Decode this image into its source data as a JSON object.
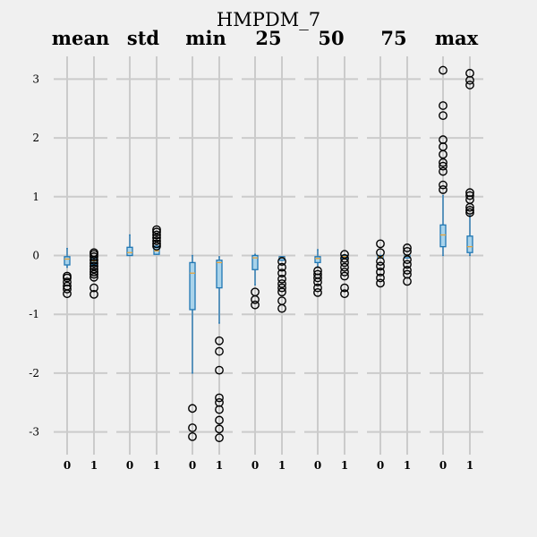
{
  "chart_data": {
    "type": "box",
    "title": "HMPDM_7",
    "yticks": [
      3,
      2,
      1,
      0,
      -1,
      -2,
      -3
    ],
    "ytick_labels": [
      "3",
      "2",
      "1",
      "0",
      "-1",
      "-2",
      "-3"
    ],
    "ylim": [
      -3.35,
      3.35
    ],
    "grid": true,
    "colors": {
      "background": "#f0f0f0",
      "grid": "#cbcbcb",
      "box_fill": "#a9d3ea",
      "box_edge": "#1f77b4",
      "median": "#e8a33a",
      "flier": "#000000"
    },
    "panels": [
      {
        "name": "mean",
        "groups": [
          {
            "label": "0",
            "q1": -0.16,
            "median": -0.06,
            "q3": -0.02,
            "whislo": -0.2,
            "whishi": 0.12,
            "fliers": [
              -0.35,
              -0.38,
              -0.45,
              -0.52,
              -0.57,
              -0.65
            ]
          },
          {
            "label": "1",
            "q1": -0.16,
            "median": -0.09,
            "q3": -0.04,
            "whislo": -0.16,
            "whishi": -0.04,
            "fliers": [
              0.05,
              0.02,
              -0.02,
              -0.08,
              -0.13,
              -0.18,
              -0.23,
              -0.28,
              -0.32,
              -0.37,
              -0.55,
              -0.66
            ]
          }
        ]
      },
      {
        "name": "std",
        "groups": [
          {
            "label": "0",
            "q1": 0.0,
            "median": 0.05,
            "q3": 0.14,
            "whislo": 0.0,
            "whishi": 0.35,
            "fliers": []
          },
          {
            "label": "1",
            "q1": 0.02,
            "median": 0.08,
            "q3": 0.16,
            "whislo": 0.02,
            "whishi": 0.16,
            "fliers": [
              0.44,
              0.4,
              0.35,
              0.3,
              0.25,
              0.2,
              0.16
            ]
          }
        ]
      },
      {
        "name": "min",
        "groups": [
          {
            "label": "0",
            "q1": -0.92,
            "median": -0.3,
            "q3": -0.12,
            "whislo": -2.0,
            "whishi": 0.0,
            "fliers": [
              -2.6,
              -2.93,
              -3.08
            ]
          },
          {
            "label": "1",
            "q1": -0.55,
            "median": -0.12,
            "q3": -0.08,
            "whislo": -1.15,
            "whishi": -0.02,
            "fliers": [
              -1.45,
              -1.63,
              -1.95,
              -2.42,
              -2.5,
              -2.62,
              -2.8,
              -2.95,
              -3.1
            ]
          }
        ]
      },
      {
        "name": "25",
        "groups": [
          {
            "label": "0",
            "q1": -0.24,
            "median": -0.04,
            "q3": 0.0,
            "whislo": -0.5,
            "whishi": 0.02,
            "fliers": [
              -0.62,
              -0.75,
              -0.84
            ]
          },
          {
            "label": "1",
            "q1": -0.08,
            "median": -0.04,
            "q3": -0.02,
            "whislo": -0.08,
            "whishi": -0.02,
            "fliers": [
              -0.1,
              -0.2,
              -0.3,
              -0.4,
              -0.48,
              -0.55,
              -0.62,
              -0.77,
              -0.9
            ]
          }
        ]
      },
      {
        "name": "50",
        "groups": [
          {
            "label": "0",
            "q1": -0.12,
            "median": -0.05,
            "q3": -0.02,
            "whislo": -0.2,
            "whishi": 0.1,
            "fliers": [
              -0.26,
              -0.32,
              -0.38,
              -0.45,
              -0.55,
              -0.63
            ]
          },
          {
            "label": "1",
            "q1": -0.05,
            "median": -0.02,
            "q3": 0.0,
            "whislo": -0.05,
            "whishi": 0.0,
            "fliers": [
              0.02,
              -0.05,
              -0.12,
              -0.2,
              -0.28,
              -0.35,
              -0.55,
              -0.65
            ]
          }
        ]
      },
      {
        "name": "75",
        "groups": [
          {
            "label": "0",
            "q1": -0.04,
            "median": -0.02,
            "q3": 0.0,
            "whislo": -0.04,
            "whishi": 0.0,
            "fliers": [
              0.2,
              0.05,
              -0.1,
              -0.18,
              -0.28,
              -0.38,
              -0.47
            ]
          },
          {
            "label": "1",
            "q1": -0.04,
            "median": -0.01,
            "q3": 0.0,
            "whislo": -0.04,
            "whishi": 0.0,
            "fliers": [
              0.13,
              0.07,
              -0.07,
              -0.15,
              -0.25,
              -0.32,
              -0.44
            ]
          }
        ]
      },
      {
        "name": "max",
        "groups": [
          {
            "label": "0",
            "q1": 0.15,
            "median": 0.35,
            "q3": 0.52,
            "whislo": 0.0,
            "whishi": 1.02,
            "fliers": [
              3.15,
              2.55,
              2.38,
              1.97,
              1.85,
              1.72,
              1.58,
              1.52,
              1.43,
              1.2,
              1.12
            ]
          },
          {
            "label": "1",
            "q1": 0.05,
            "median": 0.15,
            "q3": 0.33,
            "whislo": 0.0,
            "whishi": 0.68,
            "fliers": [
              3.1,
              2.98,
              2.9,
              1.07,
              1.02,
              0.95,
              0.82,
              0.77,
              0.73
            ]
          }
        ]
      }
    ]
  }
}
